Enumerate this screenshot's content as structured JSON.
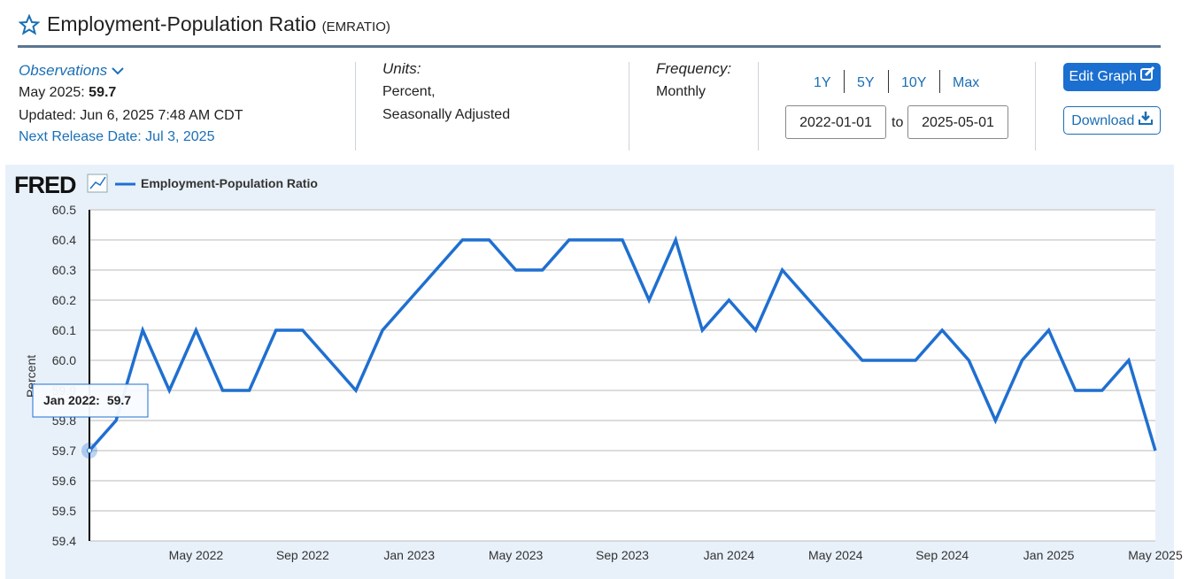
{
  "header": {
    "title": "Employment-Population Ratio",
    "series_id": "(EMRATIO)",
    "observations_label": "Observations",
    "latest_date": "May 2025:",
    "latest_value": 59.7,
    "updated": "Updated: Jun 6, 2025 7:48 AM CDT",
    "next_release": "Next Release Date: Jul 3, 2025",
    "units_label": "Units:",
    "units_1": "Percent,",
    "units_2": "Seasonally Adjusted",
    "frequency_label": "Frequency:",
    "frequency": "Monthly",
    "ranges": [
      "1Y",
      "5Y",
      "10Y",
      "Max"
    ],
    "start_date": "2022-01-01",
    "to": "to",
    "end_date": "2025-05-01",
    "edit_button": "Edit Graph",
    "download_button": "Download"
  },
  "chart_data": {
    "type": "line",
    "logo": "FRED",
    "y_label": "Percent",
    "tooltip_label": "Jan 2022:",
    "categories": [
      null,
      null,
      null,
      null,
      "May 2022",
      null,
      null,
      null,
      "Sep 2022",
      null,
      null,
      null,
      "Jan 2023",
      null,
      null,
      null,
      "May 2023",
      null,
      null,
      null,
      "Sep 2023",
      null,
      null,
      null,
      "Jan 2024",
      null,
      null,
      null,
      "May 2024",
      null,
      null,
      null,
      "Sep 2024",
      null,
      null,
      null,
      "Jan 2025",
      null,
      null,
      null,
      "May 2025"
    ],
    "series": [
      {
        "name": "Employment-Population Ratio",
        "color": "#1f6fd0",
        "values": [
          59.7,
          59.8,
          60.1,
          59.9,
          60.1,
          59.9,
          59.9,
          60.1,
          60.1,
          60.0,
          59.9,
          60.1,
          60.2,
          60.3,
          60.4,
          60.4,
          60.3,
          60.3,
          60.4,
          60.4,
          60.4,
          60.2,
          60.4,
          60.1,
          60.2,
          60.1,
          60.3,
          60.2,
          60.1,
          60.0,
          60.0,
          60.0,
          60.1,
          60.0,
          59.8,
          60.0,
          60.1,
          59.9,
          59.9,
          60.0,
          59.7
        ]
      }
    ],
    "ylim": [
      59.4,
      60.5
    ],
    "yticks": [
      59.4,
      59.5,
      59.6,
      59.7,
      59.8,
      59.9,
      {
        "value": 60,
        "label": "60.0"
      },
      60.1,
      60.2,
      60.3,
      60.4,
      60.5
    ],
    "grid": true
  }
}
